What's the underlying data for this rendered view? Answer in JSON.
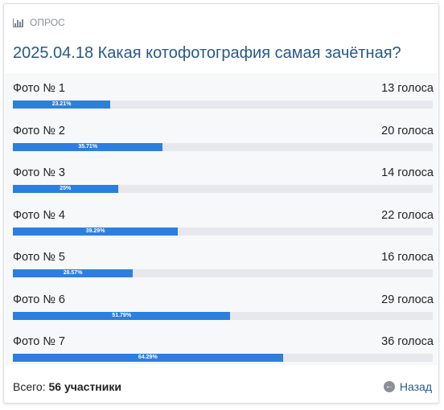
{
  "poll": {
    "type_label": "ОПРОС",
    "type_icon": "poll-chart-icon",
    "title": "2025.04.18 Какая котофотография самая зачётная?",
    "options": [
      {
        "label": "Фото № 1",
        "votes": "13 голоса",
        "percent_label": "23.21%",
        "percent": 23.21
      },
      {
        "label": "Фото № 2",
        "votes": "20 голоса",
        "percent_label": "35.71%",
        "percent": 35.71
      },
      {
        "label": "Фото № 3",
        "votes": "14 голоса",
        "percent_label": "25%",
        "percent": 25
      },
      {
        "label": "Фото № 4",
        "votes": "22 голоса",
        "percent_label": "39.29%",
        "percent": 39.29
      },
      {
        "label": "Фото № 5",
        "votes": "16 голоса",
        "percent_label": "28.57%",
        "percent": 28.57
      },
      {
        "label": "Фото № 6",
        "votes": "29 голоса",
        "percent_label": "51.79%",
        "percent": 51.79
      },
      {
        "label": "Фото № 7",
        "votes": "36 голоса",
        "percent_label": "64.29%",
        "percent": 64.29
      }
    ],
    "total_prefix": "Всего:",
    "total_value": "56 участники",
    "back_label": "Назад",
    "back_icon": "arrow-left-circle-icon"
  },
  "colors": {
    "title": "#2a5885",
    "bar_fill": "#2d7fde",
    "bar_track": "#e7e8ec",
    "options_bg": "#f7f8fa"
  }
}
